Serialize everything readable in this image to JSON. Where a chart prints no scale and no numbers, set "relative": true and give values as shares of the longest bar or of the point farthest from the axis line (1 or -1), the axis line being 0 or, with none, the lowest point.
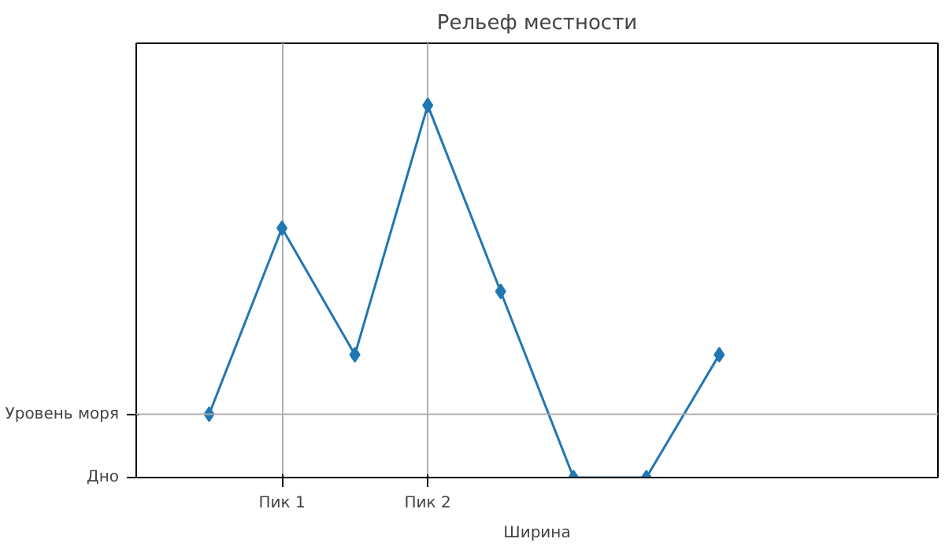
{
  "chart_data": {
    "type": "line",
    "title": "Рельеф местности",
    "xlabel": "Ширина",
    "categories": [
      null,
      "Пик 1",
      null,
      "Пик 2",
      null,
      null,
      null,
      null
    ],
    "relative": true,
    "series": [
      {
        "color": "#1f77b4",
        "values": [
          0.17,
          0.67,
          0.33,
          1,
          0.5,
          0,
          0,
          0.33
        ]
      }
    ],
    "ref_lines": [
      {
        "axis": "y",
        "value": 0,
        "label": "Дно"
      },
      {
        "axis": "y",
        "value": 0.17,
        "label": "Уровень моря",
        "color": "#b0b0b0"
      }
    ],
    "grid": "x",
    "marker": "diamond",
    "line_style": "solid"
  }
}
